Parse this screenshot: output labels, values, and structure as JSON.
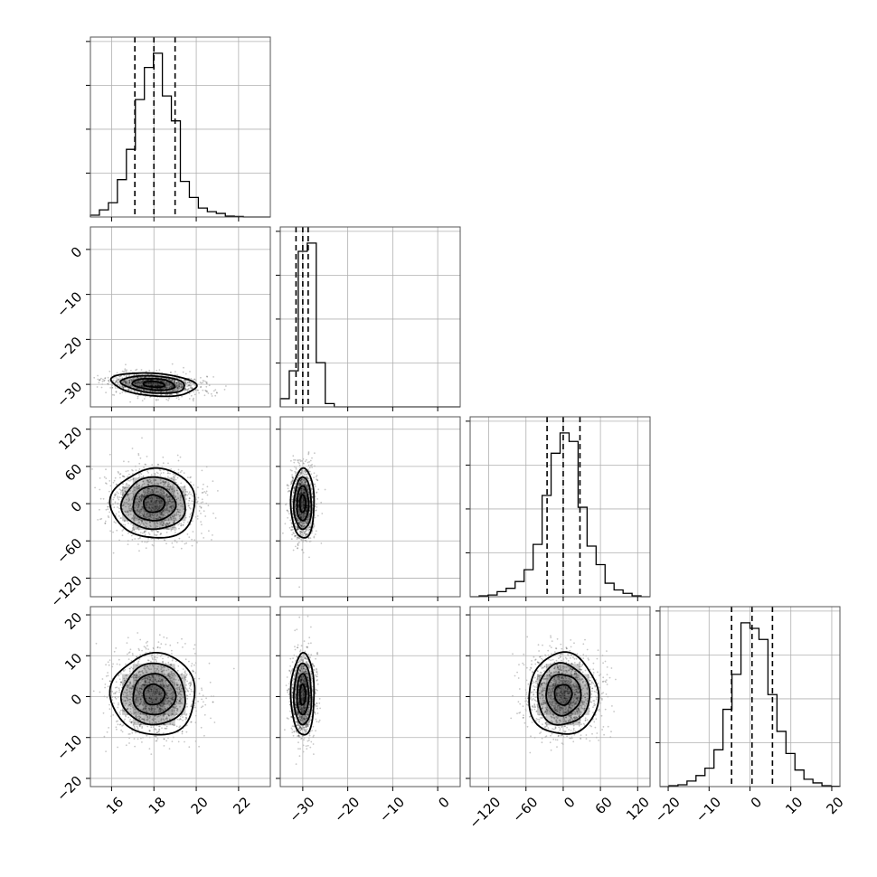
{
  "chart_data": {
    "type": "corner",
    "grid": true,
    "quantiles": [
      0.16,
      0.5,
      0.84
    ],
    "parameters": [
      {
        "mean": 18.0,
        "sd": 1.0,
        "range": [
          15,
          23.5
        ],
        "ticks": [
          16,
          18,
          20,
          22
        ],
        "tick_labels": [
          "16",
          "18",
          "20",
          "22"
        ],
        "quantile_values": [
          17.1,
          18.0,
          19.0
        ],
        "hist_edges": [
          15,
          15.425,
          15.85,
          16.275,
          16.7,
          17.125,
          17.55,
          17.975,
          18.4,
          18.825,
          19.25,
          19.675,
          20.1,
          20.525,
          20.95,
          21.375,
          21.8,
          22.225,
          22.65,
          23.075,
          23.5
        ],
        "hist_heights": [
          0.01,
          0.04,
          0.08,
          0.21,
          0.38,
          0.66,
          0.84,
          0.92,
          0.68,
          0.54,
          0.2,
          0.11,
          0.05,
          0.03,
          0.02,
          0.005,
          0.003,
          0.0,
          0.0,
          0.0
        ]
      },
      {
        "mean": -30.0,
        "sd": 1.3,
        "range": [
          -35,
          5
        ],
        "ticks": [
          -30,
          -20,
          -10,
          0
        ],
        "tick_labels": [
          "−30",
          "−20",
          "−10",
          "0"
        ],
        "quantile_values": [
          -31.5,
          -30.0,
          -28.8
        ],
        "hist_edges": [
          -35,
          -33,
          -31,
          -29,
          -27,
          -25,
          -23,
          -21,
          -19,
          -17,
          -15,
          -13,
          -11,
          -9,
          -7,
          -5,
          -3,
          -1,
          1,
          3,
          5
        ],
        "hist_heights": [
          0.05,
          0.22,
          0.95,
          1.0,
          0.27,
          0.02,
          0.0,
          0.0,
          0.0,
          0.0,
          0.0,
          0.0,
          0.0,
          0.0,
          0.0,
          0.0,
          0.0,
          0.0,
          0.0,
          0.0
        ]
      },
      {
        "mean": 0.0,
        "sd": 28,
        "range": [
          -150,
          140
        ],
        "ticks": [
          -120,
          -60,
          0,
          60,
          120
        ],
        "tick_labels": [
          "−120",
          "−60",
          "0",
          "60",
          "120"
        ],
        "quantile_values": [
          -26,
          0,
          27
        ],
        "hist_edges": [
          -150,
          -135.5,
          -121,
          -106.5,
          -92,
          -77.5,
          -63,
          -48.5,
          -34,
          -19.5,
          -5,
          9.5,
          24,
          38.5,
          53,
          67.5,
          82,
          96.5,
          111,
          125.5,
          140
        ],
        "hist_heights": [
          0.0,
          0.005,
          0.01,
          0.03,
          0.05,
          0.09,
          0.16,
          0.31,
          0.6,
          0.85,
          0.97,
          0.92,
          0.53,
          0.3,
          0.19,
          0.08,
          0.04,
          0.02,
          0.005,
          0.0
        ]
      },
      {
        "mean": 0.5,
        "sd": 5,
        "range": [
          -22,
          22
        ],
        "ticks": [
          -20,
          -10,
          0,
          10,
          20
        ],
        "tick_labels": [
          "−20",
          "−10",
          "0",
          "10",
          "20"
        ],
        "quantile_values": [
          -4.5,
          0.5,
          5.5
        ],
        "hist_edges": [
          -22,
          -19.8,
          -17.6,
          -15.4,
          -13.2,
          -11,
          -8.8,
          -6.6,
          -4.4,
          -2.2,
          0,
          2.2,
          4.4,
          6.6,
          8.8,
          11,
          13.2,
          15.4,
          17.6,
          19.8,
          22
        ],
        "hist_heights": [
          0.0,
          0.005,
          0.01,
          0.03,
          0.06,
          0.1,
          0.2,
          0.42,
          0.61,
          0.89,
          0.86,
          0.8,
          0.5,
          0.3,
          0.18,
          0.09,
          0.04,
          0.02,
          0.005,
          0.002
        ]
      }
    ],
    "correlations": [
      [
        1,
        -0.25,
        0,
        0
      ],
      [
        -0.25,
        1,
        0,
        0
      ],
      [
        0,
        0,
        1,
        0
      ],
      [
        0,
        0,
        0,
        1
      ]
    ],
    "contour_levels_sigma": [
      0.5,
      1.0,
      1.5,
      2.0
    ]
  }
}
